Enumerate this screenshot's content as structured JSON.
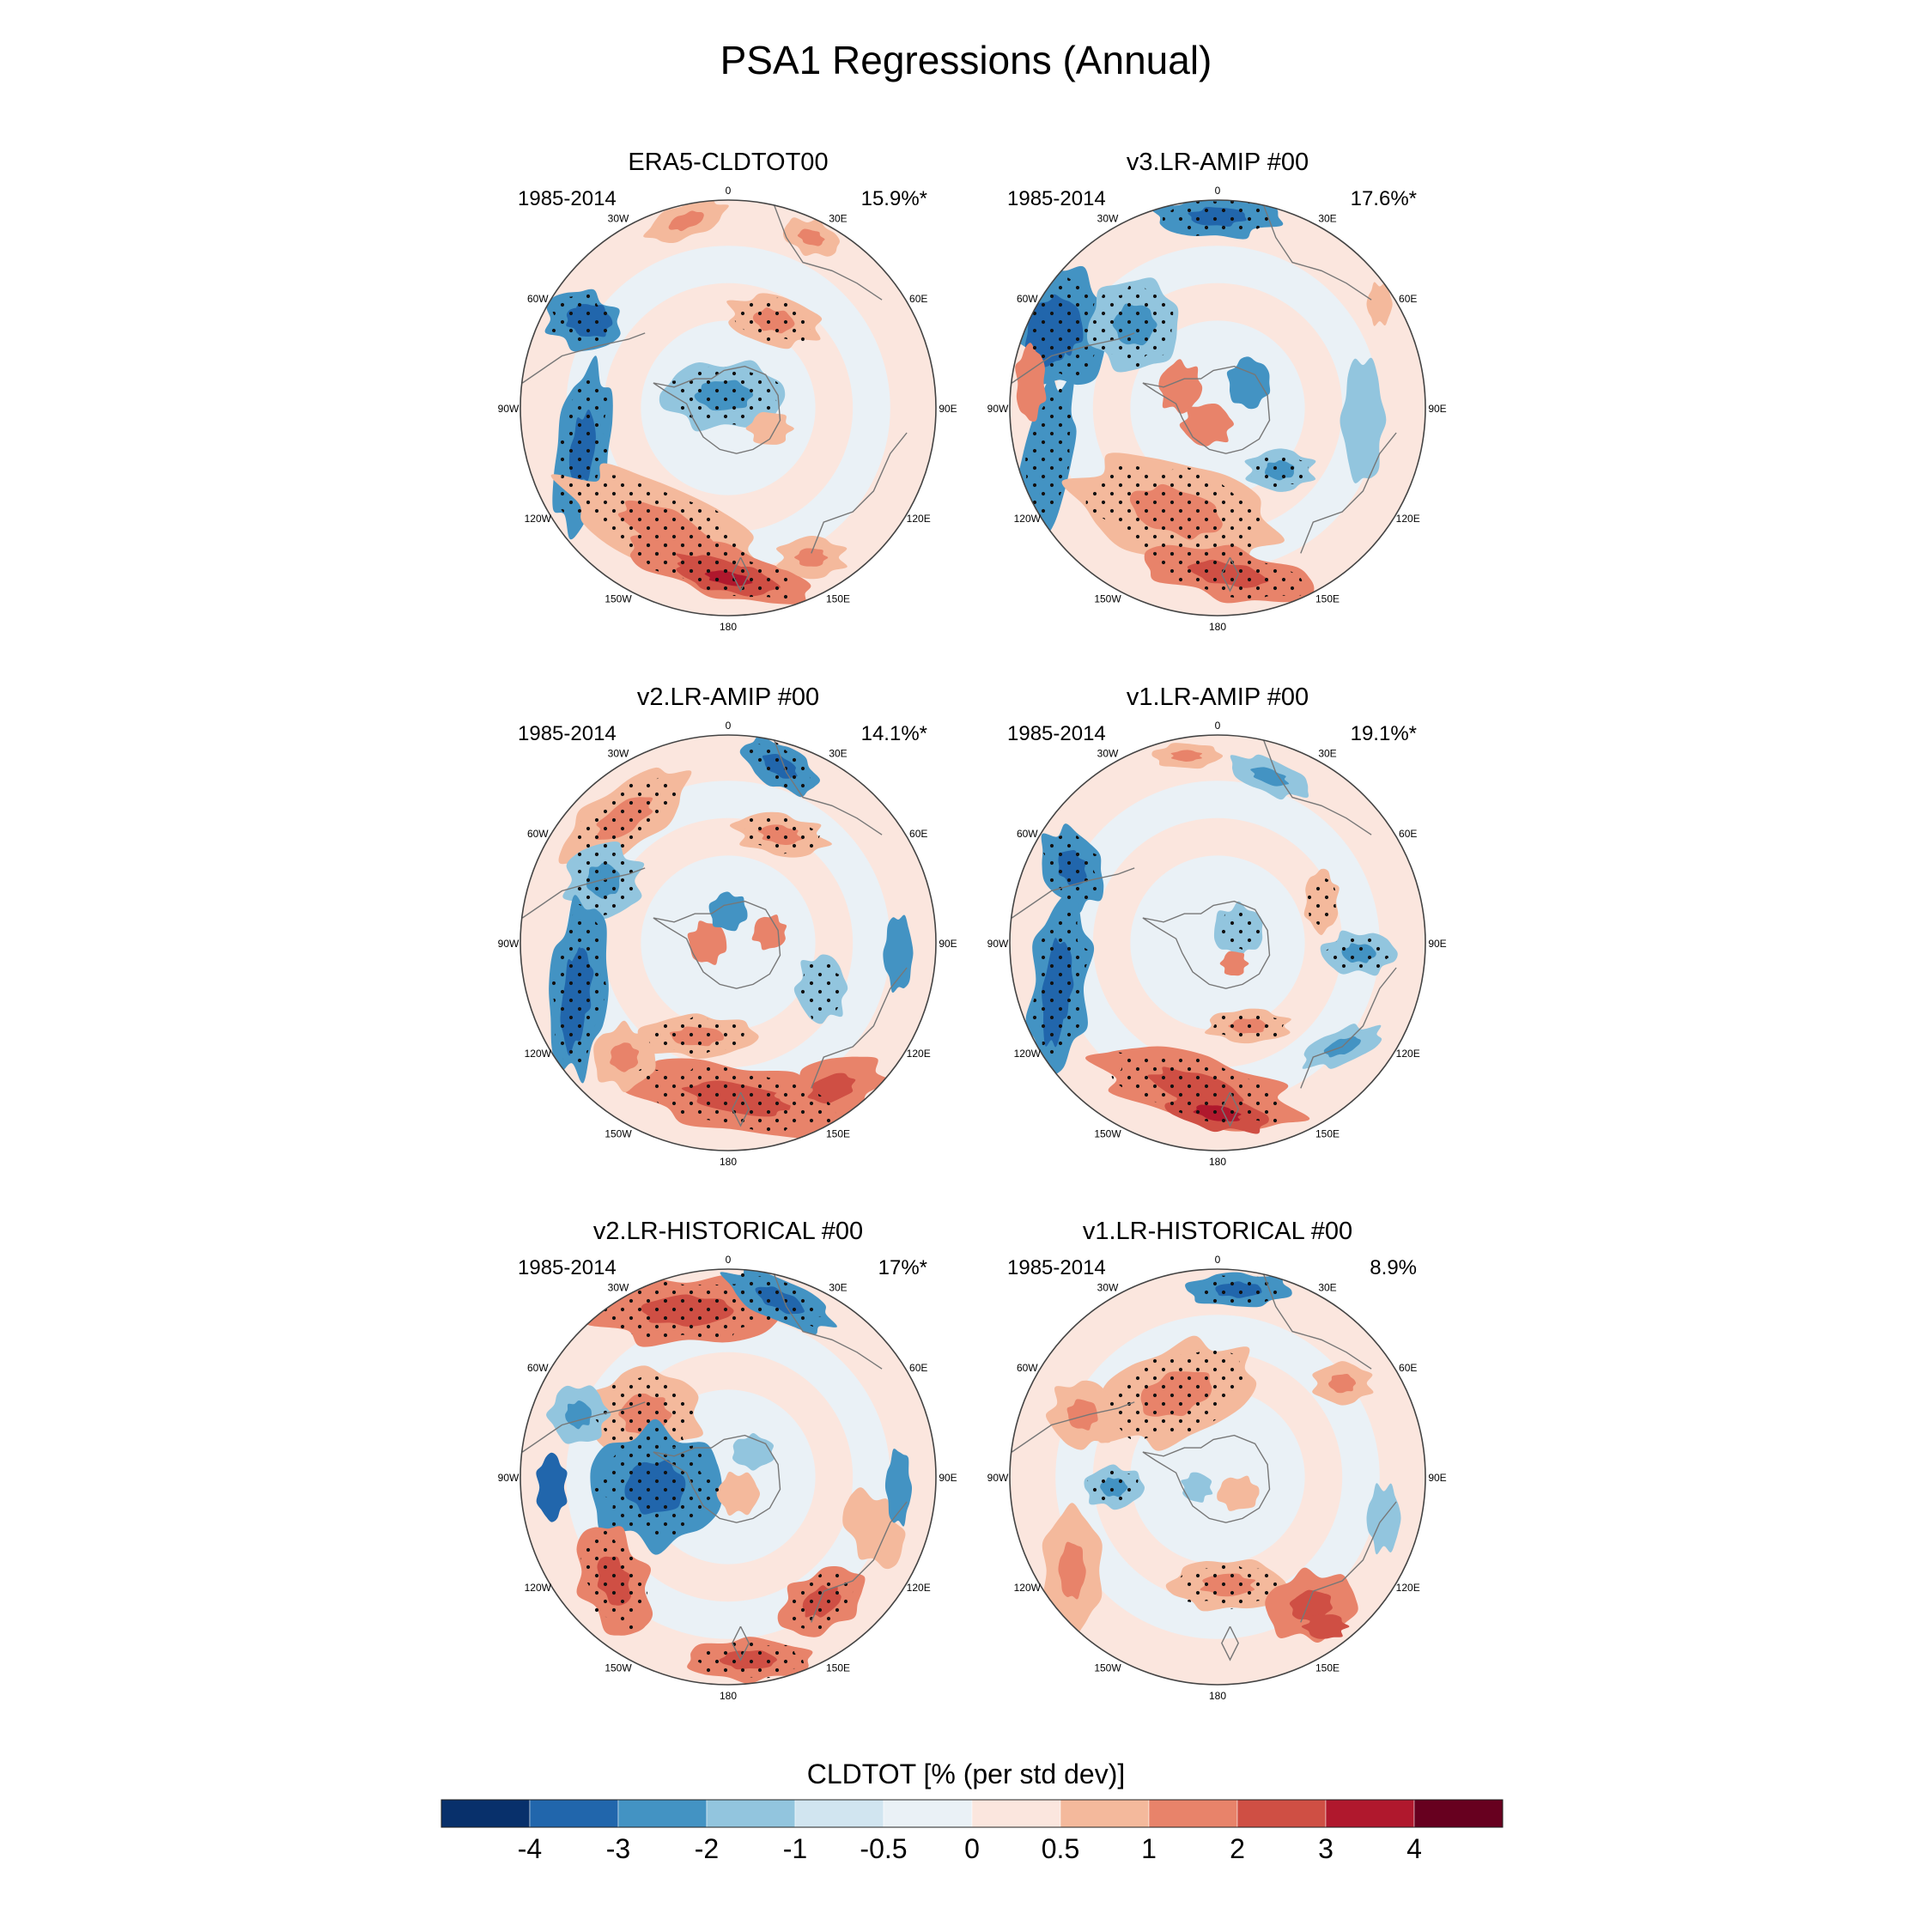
{
  "title": "PSA1 Regressions (Annual)",
  "colors": {
    "levels": [
      "#08306b",
      "#2166ac",
      "#4393c3",
      "#92c5de",
      "#d1e5f0",
      "#eaf1f6",
      "#fbe6de",
      "#f4b99c",
      "#e8836a",
      "#cf4f44",
      "#b0182d",
      "#67001f"
    ],
    "coast": "#777777",
    "ring": "#444444"
  },
  "lon_labels": [
    "0",
    "30E",
    "60E",
    "90E",
    "120E",
    "150E",
    "180",
    "150W",
    "120W",
    "90W",
    "60W",
    "30W"
  ],
  "panels": [
    {
      "name": "ERA5-CLDTOT00",
      "period": "1985-2014",
      "pct": "15.9%*"
    },
    {
      "name": "v3.LR-AMIP  #00",
      "period": "1985-2014",
      "pct": "17.6%*"
    },
    {
      "name": "v2.LR-AMIP  #00",
      "period": "1985-2014",
      "pct": "14.1%*"
    },
    {
      "name": "v1.LR-AMIP  #00",
      "period": "1985-2014",
      "pct": "19.1%*"
    },
    {
      "name": "v2.LR-HISTORICAL  #00",
      "period": "1985-2014",
      "pct": "17%*"
    },
    {
      "name": "v1.LR-HISTORICAL  #00",
      "period": "1985-2014",
      "pct": "8.9%"
    }
  ],
  "colorbar": {
    "label": "CLDTOT [% (per std dev)]",
    "ticks": [
      "-4",
      "-3",
      "-2",
      "-1",
      "-0.5",
      "0",
      "0.5",
      "1",
      "2",
      "3",
      "4"
    ]
  }
}
